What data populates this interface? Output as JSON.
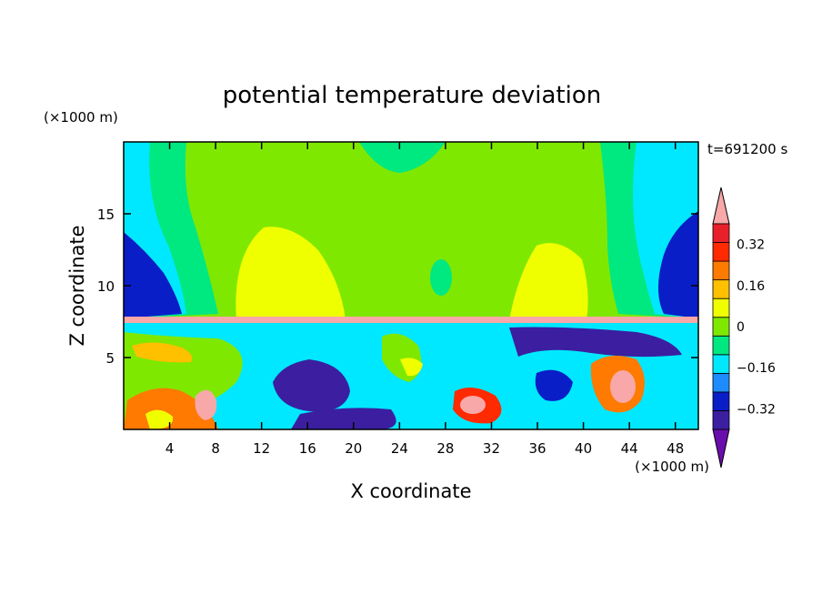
{
  "chart_data": {
    "type": "heatmap",
    "title": "potential temperature deviation",
    "xlabel": "X coordinate",
    "ylabel": "Z coordinate",
    "x_unit": "(×1000 m)",
    "y_unit": "(×1000 m)",
    "time_label": "t=691200 s",
    "xlim": [
      0,
      50
    ],
    "ylim": [
      0,
      20
    ],
    "x_ticks": [
      4,
      8,
      12,
      16,
      20,
      24,
      28,
      32,
      36,
      40,
      44,
      48
    ],
    "y_ticks": [
      5,
      10,
      15
    ],
    "colorbar": {
      "levels": [
        -0.44,
        -0.4,
        -0.32,
        -0.24,
        -0.16,
        -0.08,
        0,
        0.08,
        0.16,
        0.24,
        0.32,
        0.4,
        0.44
      ],
      "tick_values": [
        -0.32,
        -0.16,
        0,
        0.16,
        0.32
      ],
      "tick_labels": [
        "−0.32",
        "−0.16",
        "0",
        "0.16",
        "0.32"
      ],
      "colors": [
        "#6a0dad",
        "#3b1fa0",
        "#0a1ec8",
        "#1e8cff",
        "#00e8ff",
        "#00e880",
        "#7fe800",
        "#f0ff00",
        "#ffc000",
        "#ff7a00",
        "#ff2a00",
        "#e8202a",
        "#f8a8a8"
      ],
      "extend": "both"
    }
  }
}
